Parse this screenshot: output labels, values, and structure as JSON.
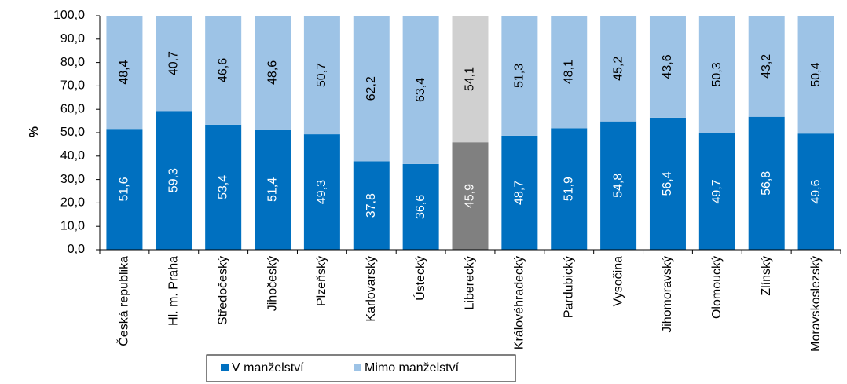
{
  "chart_data": {
    "type": "stacked_bar",
    "y_label": "%",
    "categories": [
      "Česká republika",
      "Hl. m. Praha",
      "Středočeský",
      "Jihočeský",
      "Plzeňský",
      "Karlovarský",
      "Ústecký",
      "Liberecký",
      "Královéhradecký",
      "Pardubický",
      "Vysočina",
      "Jihomoravský",
      "Olomoucký",
      "Zlínský",
      "Moravskoslezský"
    ],
    "series": [
      {
        "name": "V manželství",
        "color": "#0070c0",
        "colors": [
          "#0070c0",
          "#0070c0",
          "#0070c0",
          "#0070c0",
          "#0070c0",
          "#0070c0",
          "#0070c0",
          "#808080",
          "#0070c0",
          "#0070c0",
          "#0070c0",
          "#0070c0",
          "#0070c0",
          "#0070c0",
          "#0070c0"
        ],
        "values": [
          51.6,
          59.3,
          53.4,
          51.4,
          49.3,
          37.8,
          36.6,
          45.9,
          48.7,
          51.9,
          54.8,
          56.4,
          49.7,
          56.8,
          49.6
        ],
        "value_labels": [
          "51,6",
          "59,3",
          "53,4",
          "51,4",
          "49,3",
          "37,8",
          "36,6",
          "45,9",
          "48,7",
          "51,9",
          "54,8",
          "56,4",
          "49,7",
          "56,8",
          "49,6"
        ]
      },
      {
        "name": "Mimo manželství",
        "color": "#9dc3e6",
        "colors": [
          "#9dc3e6",
          "#9dc3e6",
          "#9dc3e6",
          "#9dc3e6",
          "#9dc3e6",
          "#9dc3e6",
          "#9dc3e6",
          "#d0d0d0",
          "#9dc3e6",
          "#9dc3e6",
          "#9dc3e6",
          "#9dc3e6",
          "#9dc3e6",
          "#9dc3e6",
          "#9dc3e6"
        ],
        "values": [
          48.4,
          40.7,
          46.6,
          48.6,
          50.7,
          62.2,
          63.4,
          54.1,
          51.3,
          48.1,
          45.2,
          43.6,
          50.3,
          43.2,
          50.4
        ],
        "value_labels": [
          "48,4",
          "40,7",
          "46,6",
          "48,6",
          "50,7",
          "62,2",
          "63,4",
          "54,1",
          "51,3",
          "48,1",
          "45,2",
          "43,6",
          "50,3",
          "43,2",
          "50,4"
        ]
      }
    ],
    "ylim": [
      0,
      100
    ],
    "yticks": [
      {
        "value": 0,
        "label": "0,0"
      },
      {
        "value": 10,
        "label": "10,0"
      },
      {
        "value": 20,
        "label": "20,0"
      },
      {
        "value": 30,
        "label": "30,0"
      },
      {
        "value": 40,
        "label": "40,0"
      },
      {
        "value": 50,
        "label": "50,0"
      },
      {
        "value": 60,
        "label": "60,0"
      },
      {
        "value": 70,
        "label": "70,0"
      },
      {
        "value": 80,
        "label": "80,0"
      },
      {
        "value": 90,
        "label": "90,0"
      },
      {
        "value": 100,
        "label": "100,0"
      }
    ],
    "legend": "bottom"
  }
}
